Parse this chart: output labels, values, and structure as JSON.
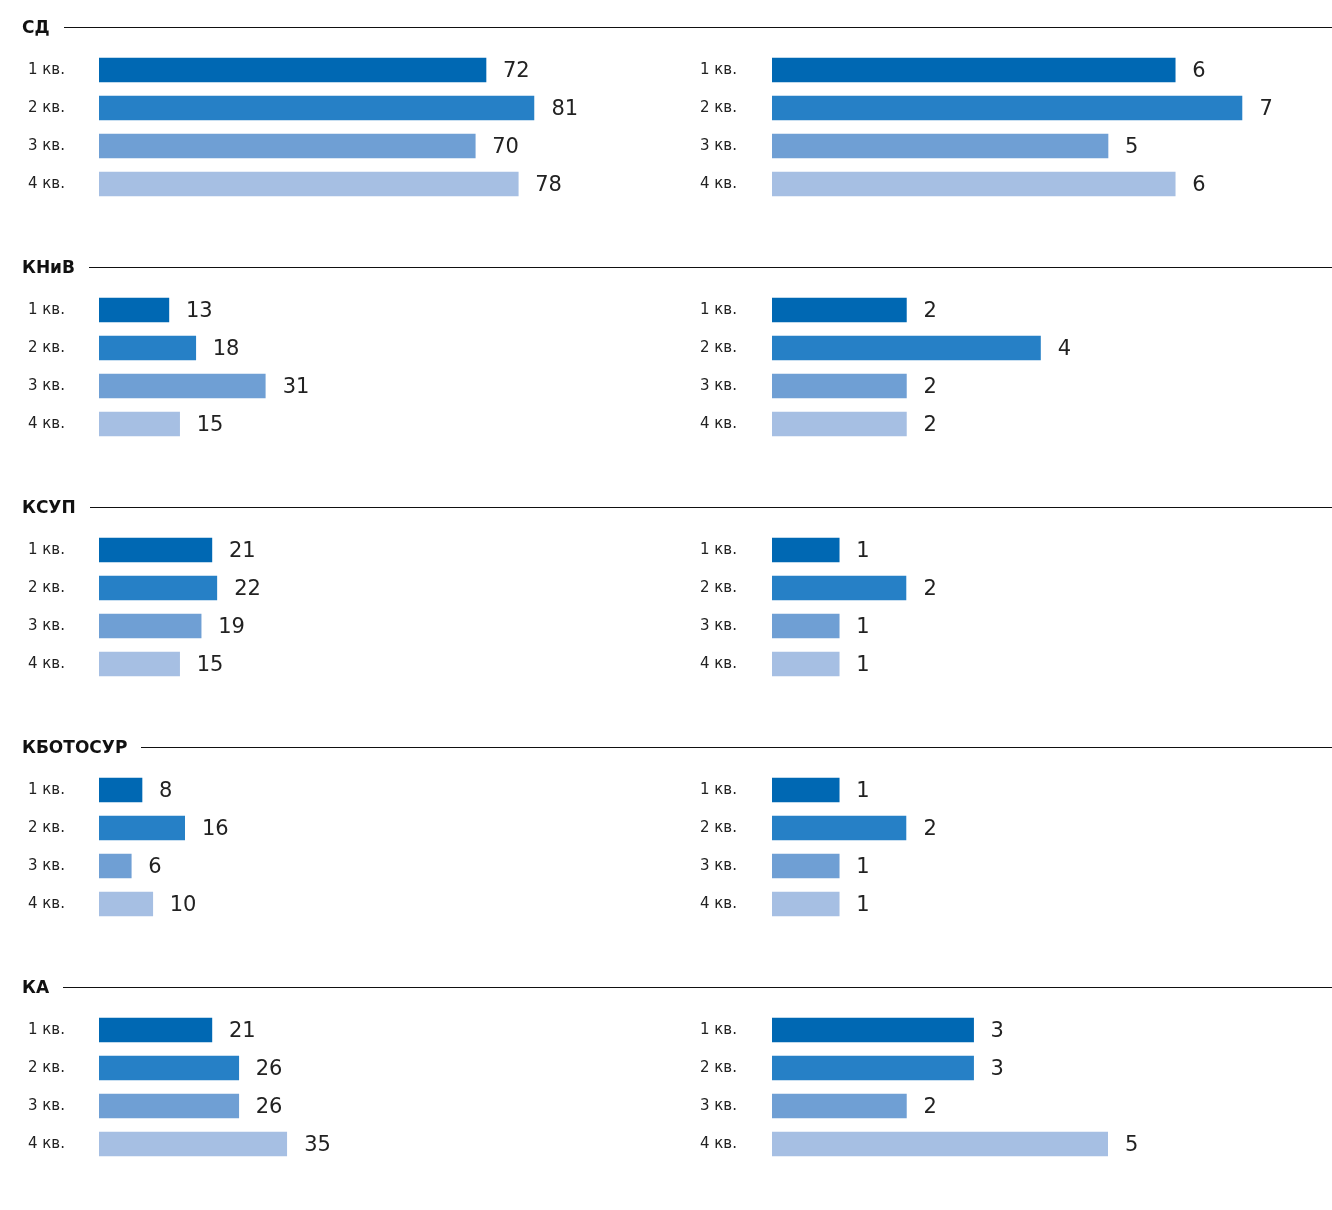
{
  "chart_data": [
    {
      "type": "bar",
      "orientation": "horizontal",
      "title": "СД",
      "categories": [
        "1 кв.",
        "2 кв.",
        "3 кв.",
        "4 кв."
      ],
      "values": [
        72,
        81,
        70,
        78
      ],
      "colors": [
        "#0068b3",
        "#2680c6",
        "#6f9fd4",
        "#a6bfe3"
      ],
      "tick_labels": "y",
      "data_labels": true
    },
    {
      "type": "bar",
      "orientation": "horizontal",
      "categories": [
        "1 кв.",
        "2 кв.",
        "3 кв.",
        "4 кв."
      ],
      "values": [
        6,
        7,
        5,
        6
      ],
      "colors": [
        "#0068b3",
        "#2680c6",
        "#6f9fd4",
        "#a6bfe3"
      ],
      "tick_labels": "y",
      "data_labels": true
    },
    {
      "type": "bar",
      "orientation": "horizontal",
      "title": "КНиВ",
      "categories": [
        "1 кв.",
        "2 кв.",
        "3 кв.",
        "4 кв."
      ],
      "values": [
        13,
        18,
        31,
        15
      ],
      "colors": [
        "#0068b3",
        "#2680c6",
        "#6f9fd4",
        "#a6bfe3"
      ],
      "tick_labels": "y",
      "data_labels": true
    },
    {
      "type": "bar",
      "orientation": "horizontal",
      "categories": [
        "1 кв.",
        "2 кв.",
        "3 кв.",
        "4 кв."
      ],
      "values": [
        2,
        4,
        2,
        2
      ],
      "colors": [
        "#0068b3",
        "#2680c6",
        "#6f9fd4",
        "#a6bfe3"
      ],
      "tick_labels": "y",
      "data_labels": true
    },
    {
      "type": "bar",
      "orientation": "horizontal",
      "title": "КСУП",
      "categories": [
        "1 кв.",
        "2 кв.",
        "3 кв.",
        "4 кв."
      ],
      "values": [
        21,
        22,
        19,
        15
      ],
      "colors": [
        "#0068b3",
        "#2680c6",
        "#6f9fd4",
        "#a6bfe3"
      ],
      "tick_labels": "y",
      "data_labels": true
    },
    {
      "type": "bar",
      "orientation": "horizontal",
      "categories": [
        "1 кв.",
        "2 кв.",
        "3 кв.",
        "4 кв."
      ],
      "values": [
        1,
        2,
        1,
        1
      ],
      "colors": [
        "#0068b3",
        "#2680c6",
        "#6f9fd4",
        "#a6bfe3"
      ],
      "tick_labels": "y",
      "data_labels": true
    },
    {
      "type": "bar",
      "orientation": "horizontal",
      "title": "КБОТОСУР",
      "categories": [
        "1 кв.",
        "2 кв.",
        "3 кв.",
        "4 кв."
      ],
      "values": [
        8,
        16,
        6,
        10
      ],
      "colors": [
        "#0068b3",
        "#2680c6",
        "#6f9fd4",
        "#a6bfe3"
      ],
      "tick_labels": "y",
      "data_labels": true
    },
    {
      "type": "bar",
      "orientation": "horizontal",
      "categories": [
        "1 кв.",
        "2 кв.",
        "3 кв.",
        "4 кв."
      ],
      "values": [
        1,
        2,
        1,
        1
      ],
      "colors": [
        "#0068b3",
        "#2680c6",
        "#6f9fd4",
        "#a6bfe3"
      ],
      "tick_labels": "y",
      "data_labels": true
    },
    {
      "type": "bar",
      "orientation": "horizontal",
      "title": "КА",
      "categories": [
        "1 кв.",
        "2 кв.",
        "3 кв.",
        "4 кв."
      ],
      "values": [
        21,
        26,
        26,
        35
      ],
      "colors": [
        "#0068b3",
        "#2680c6",
        "#6f9fd4",
        "#a6bfe3"
      ],
      "tick_labels": "y",
      "data_labels": true
    },
    {
      "type": "bar",
      "orientation": "horizontal",
      "categories": [
        "1 кв.",
        "2 кв.",
        "3 кв.",
        "4 кв."
      ],
      "values": [
        3,
        3,
        2,
        5
      ],
      "colors": [
        "#0068b3",
        "#2680c6",
        "#6f9fd4",
        "#a6bfe3"
      ],
      "tick_labels": "y",
      "data_labels": true
    }
  ]
}
